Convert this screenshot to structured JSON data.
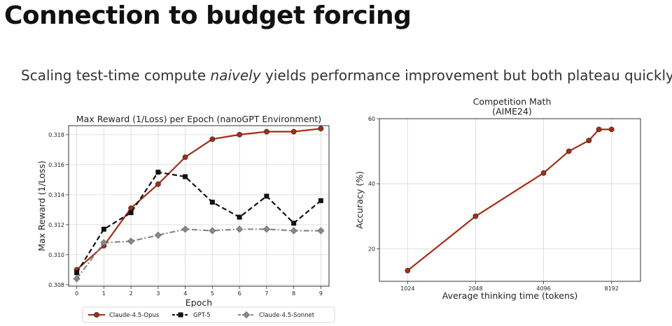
{
  "slide": {
    "title": "Connection to budget forcing",
    "subtitle_pre": "Scaling test-time compute ",
    "subtitle_em": "naively",
    "subtitle_post": " yields performance improvement but both plateau quickly"
  },
  "chart_data": [
    {
      "type": "line",
      "title": "Max Reward (1/Loss) per Epoch (nanoGPT Environment)",
      "xlabel": "Epoch",
      "ylabel": "Max Reward (1/Loss)",
      "xlim": [
        -0.3,
        9.3
      ],
      "ylim": [
        0.3079,
        0.3186
      ],
      "x": [
        0,
        1,
        2,
        3,
        4,
        5,
        6,
        7,
        8,
        9
      ],
      "xticks": [
        "0",
        "1",
        "2",
        "3",
        "4",
        "5",
        "6",
        "7",
        "8",
        "9"
      ],
      "yticks": [
        0.308,
        0.31,
        0.312,
        0.314,
        0.316,
        0.318
      ],
      "ytick_labels": [
        "0.308",
        "0.310",
        "0.312",
        "0.314",
        "0.316",
        "0.318"
      ],
      "grid": true,
      "legend": "below",
      "series": [
        {
          "name": "Claude-4.5-Opus",
          "color": "#a32d17",
          "dash": "solid",
          "marker": "circle",
          "values": [
            0.309,
            0.3106,
            0.3131,
            0.3147,
            0.3165,
            0.3177,
            0.318,
            0.3182,
            0.3182,
            0.3184
          ]
        },
        {
          "name": "GPT-5",
          "color": "#111111",
          "dash": "dashed",
          "marker": "square",
          "values": [
            0.3088,
            0.3117,
            0.3128,
            0.3155,
            0.3152,
            0.3135,
            0.3125,
            0.3139,
            0.3121,
            0.3136
          ]
        },
        {
          "name": "Claude-4.5-Sonnet",
          "color": "#888888",
          "dash": "dashdot",
          "marker": "diamond",
          "values": [
            0.3084,
            0.3108,
            0.3109,
            0.3113,
            0.3117,
            0.3116,
            0.3117,
            0.3117,
            0.3116,
            0.3116
          ]
        }
      ]
    },
    {
      "type": "line",
      "title": "Competition Math",
      "subtitle": "(AIME24)",
      "xlabel": "Average thinking time (tokens)",
      "ylabel": "Accuracy (%)",
      "xscale": "log2",
      "xlim": [
        768,
        11000
      ],
      "ylim": [
        10,
        60
      ],
      "xticks": [
        1024,
        2048,
        4096,
        8192
      ],
      "xtick_labels": [
        "1024",
        "2048",
        "4096",
        "8192"
      ],
      "yticks": [
        20,
        40,
        60
      ],
      "ytick_labels": [
        "20",
        "40",
        "60"
      ],
      "grid": true,
      "series": [
        {
          "name": "",
          "color": "#a32d17",
          "marker": "circle",
          "x": [
            1024,
            2048,
            4096,
            5300,
            6500,
            7200,
            8192
          ],
          "values": [
            13.3,
            30.0,
            43.3,
            50.0,
            53.3,
            56.7,
            56.7
          ]
        }
      ]
    }
  ]
}
